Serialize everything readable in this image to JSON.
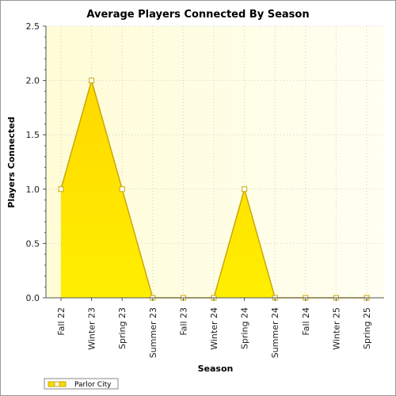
{
  "chart_data": {
    "type": "area",
    "title": "Average Players Connected By Season",
    "xlabel": "Season",
    "ylabel": "Players Connected",
    "categories": [
      "Fall 22",
      "Winter 23",
      "Spring 23",
      "Summer 23",
      "Fall 23",
      "Winter 24",
      "Spring 24",
      "Summer 24",
      "Fall 24",
      "Winter 25",
      "Spring 25"
    ],
    "series": [
      {
        "name": "Parlor City",
        "values": [
          1.0,
          2.0,
          1.0,
          0.0,
          0.0,
          0.0,
          1.0,
          0.0,
          0.0,
          0.0,
          0.0
        ]
      }
    ],
    "ylim": [
      0,
      2.5
    ],
    "y_ticks": [
      "0.0",
      "0.5",
      "1.0",
      "1.5",
      "2.0",
      "2.5"
    ],
    "grid": true,
    "legend_placement": "bottom-left",
    "colors": {
      "fill_top": "#ffd800",
      "fill_bottom": "#ffef00",
      "line": "#c9a800",
      "marker_fill": "#ffffff",
      "plot_bg_left": "#fffcd6",
      "plot_bg_right": "#fffff2",
      "grid": "#cfcfcf",
      "axis": "#555555"
    }
  }
}
